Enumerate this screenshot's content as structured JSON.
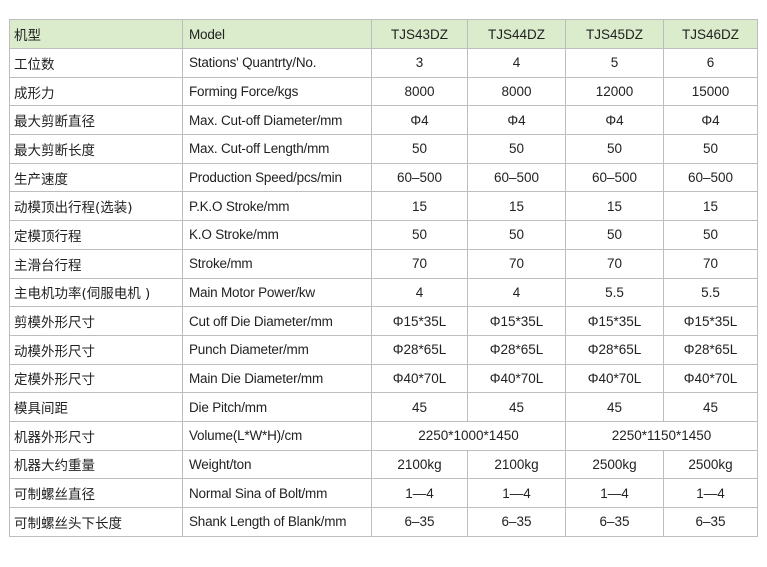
{
  "header": {
    "cn": "机型",
    "en": "Model",
    "models": [
      "TJS43DZ",
      "TJS44DZ",
      "TJS45DZ",
      "TJS46DZ"
    ]
  },
  "rows": [
    {
      "cn": "工位数",
      "en": "Stations' Quantrty/No.",
      "vals": [
        "3",
        "4",
        "5",
        "6"
      ]
    },
    {
      "cn": "成形力",
      "en": "Forming Force/kgs",
      "vals": [
        "8000",
        "8000",
        "12000",
        "15000"
      ]
    },
    {
      "cn": "最大剪断直径",
      "en": "Max. Cut-off Diameter/mm",
      "vals": [
        "Φ4",
        "Φ4",
        "Φ4",
        "Φ4"
      ]
    },
    {
      "cn": "最大剪断长度",
      "en": "Max. Cut-off Length/mm",
      "vals": [
        "50",
        "50",
        "50",
        "50"
      ]
    },
    {
      "cn": "生产速度",
      "en": "Production Speed/pcs/min",
      "vals": [
        "60–500",
        "60–500",
        "60–500",
        "60–500"
      ]
    },
    {
      "cn": "动模顶出行程(选装)",
      "en": "P.K.O Stroke/mm",
      "vals": [
        "15",
        "15",
        "15",
        "15"
      ]
    },
    {
      "cn": "定模顶行程",
      "en": "K.O Stroke/mm",
      "vals": [
        "50",
        "50",
        "50",
        "50"
      ]
    },
    {
      "cn": "主滑台行程",
      "en": "Stroke/mm",
      "vals": [
        "70",
        "70",
        "70",
        "70"
      ]
    },
    {
      "cn": "主电机功率(伺服电机 )",
      "en": "Main Motor Power/kw",
      "vals": [
        "4",
        "4",
        "5.5",
        "5.5"
      ]
    },
    {
      "cn": "剪模外形尺寸",
      "en": "Cut off Die Diameter/mm",
      "vals": [
        "Φ15*35L",
        "Φ15*35L",
        "Φ15*35L",
        "Φ15*35L"
      ]
    },
    {
      "cn": "动模外形尺寸",
      "en": "Punch Diameter/mm",
      "vals": [
        "Φ28*65L",
        "Φ28*65L",
        "Φ28*65L",
        "Φ28*65L"
      ]
    },
    {
      "cn": "定模外形尺寸",
      "en": "Main Die Diameter/mm",
      "vals": [
        "Φ40*70L",
        "Φ40*70L",
        "Φ40*70L",
        "Φ40*70L"
      ]
    },
    {
      "cn": "模具间距",
      "en": "Die Pitch/mm",
      "vals": [
        "45",
        "45",
        "45",
        "45"
      ]
    },
    {
      "cn": "机器外形尺寸",
      "en": "Volume(L*W*H)/cm",
      "merged": [
        "2250*1000*1450",
        "2250*1150*1450"
      ]
    },
    {
      "cn": "机器大约重量",
      "en": "Weight/ton",
      "vals": [
        "2100kg",
        "2100kg",
        "2500kg",
        "2500kg"
      ]
    },
    {
      "cn": "可制螺丝直径",
      "en": "Normal Sina of Bolt/mm",
      "vals": [
        "1—4",
        "1—4",
        "1—4",
        "1—4"
      ]
    },
    {
      "cn": "可制螺丝头下长度",
      "en": "Shank Length of Blank/mm",
      "vals": [
        "6–35",
        "6–35",
        "6–35",
        "6–35"
      ]
    }
  ]
}
